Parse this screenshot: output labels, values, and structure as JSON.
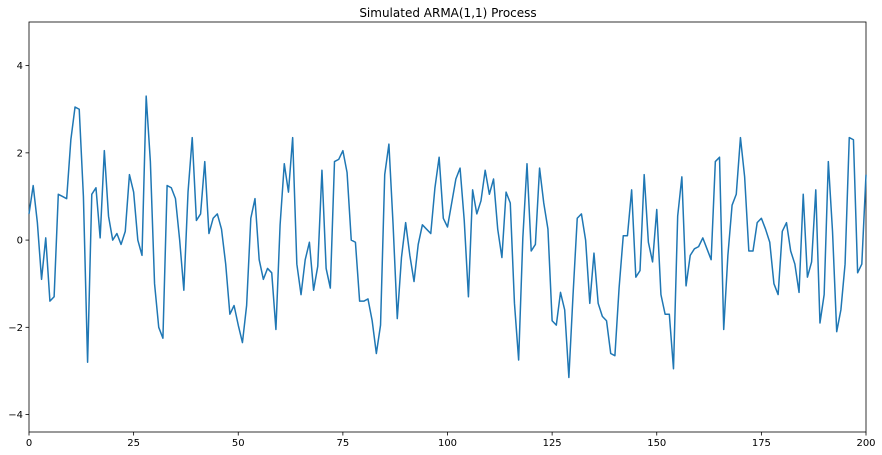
{
  "chart_data": {
    "type": "line",
    "title": "Simulated ARMA(1,1) Process",
    "xlabel": "",
    "ylabel": "",
    "xlim": [
      0,
      200
    ],
    "ylim": [
      -4.4,
      5.0
    ],
    "grid": false,
    "legend": "none",
    "line_color": "#1f77b4",
    "x_ticks": [
      0,
      25,
      50,
      75,
      100,
      125,
      150,
      175,
      200
    ],
    "y_ticks": [
      -4,
      -2,
      0,
      2,
      4
    ],
    "series": [
      {
        "x": [
          0,
          1,
          2,
          3,
          4,
          5,
          6,
          7,
          8,
          9,
          10,
          11,
          12,
          13,
          14,
          15,
          16,
          17,
          18,
          19,
          20,
          21,
          22,
          23,
          24,
          25,
          26,
          27,
          28,
          29,
          30,
          31,
          32,
          33,
          34,
          35,
          36,
          37,
          38,
          39,
          40,
          41,
          42,
          43,
          44,
          45,
          46,
          47,
          48,
          49,
          50,
          51,
          52,
          53,
          54,
          55,
          56,
          57,
          58,
          59,
          60,
          61,
          62,
          63,
          64,
          65,
          66,
          67,
          68,
          69,
          70,
          71,
          72,
          73,
          74,
          75,
          76,
          77,
          78,
          79,
          80,
          81,
          82,
          83,
          84,
          85,
          86,
          87,
          88,
          89,
          90,
          91,
          92,
          93,
          94,
          95,
          96,
          97,
          98,
          99,
          100,
          101,
          102,
          103,
          104,
          105,
          106,
          107,
          108,
          109,
          110,
          111,
          112,
          113,
          114,
          115,
          116,
          117,
          118,
          119,
          120,
          121,
          122,
          123,
          124,
          125,
          126,
          127,
          128,
          129,
          130,
          131,
          132,
          133,
          134,
          135,
          136,
          137,
          138,
          139,
          140,
          141,
          142,
          143,
          144,
          145,
          146,
          147,
          148,
          149,
          150,
          151,
          152,
          153,
          154,
          155,
          156,
          157,
          158,
          159,
          160,
          161,
          162,
          163,
          164,
          165,
          166,
          167,
          168,
          169,
          170,
          171,
          172,
          173,
          174,
          175,
          176,
          177,
          178,
          179,
          180,
          181,
          182,
          183,
          184,
          185,
          186,
          187,
          188,
          189,
          190,
          191,
          192,
          193,
          194,
          195,
          196,
          197,
          198,
          199,
          200
        ],
        "values": [
          0.6,
          1.25,
          0.4,
          -0.9,
          0.05,
          -1.4,
          -1.3,
          1.05,
          1.0,
          0.95,
          2.3,
          3.05,
          3.0,
          1.0,
          -2.8,
          1.05,
          1.2,
          0.05,
          2.05,
          0.55,
          0.0,
          0.15,
          -0.1,
          0.2,
          1.5,
          1.1,
          0.0,
          -0.35,
          3.3,
          1.8,
          -1.0,
          -2.0,
          -2.25,
          1.25,
          1.2,
          0.95,
          0.0,
          -1.15,
          1.1,
          2.35,
          0.45,
          0.6,
          1.8,
          0.15,
          0.5,
          0.6,
          0.25,
          -0.55,
          -1.7,
          -1.5,
          -1.95,
          -2.35,
          -1.5,
          0.5,
          0.95,
          -0.45,
          -0.9,
          -0.65,
          -0.75,
          -2.05,
          0.35,
          1.75,
          1.1,
          2.35,
          -0.55,
          -1.25,
          -0.45,
          -0.05,
          -1.15,
          -0.6,
          1.6,
          -0.65,
          -1.1,
          1.8,
          1.85,
          2.05,
          1.55,
          0.0,
          -0.05,
          -1.4,
          -1.4,
          -1.35,
          -1.85,
          -2.6,
          -1.95,
          1.5,
          2.2,
          0.35,
          -1.8,
          -0.4,
          0.4,
          -0.35,
          -0.95,
          -0.1,
          0.35,
          0.25,
          0.15,
          1.2,
          1.9,
          0.5,
          0.3,
          0.85,
          1.4,
          1.65,
          0.45,
          -1.3,
          1.15,
          0.6,
          0.9,
          1.6,
          1.05,
          1.4,
          0.25,
          -0.4,
          1.1,
          0.85,
          -1.45,
          -2.75,
          0.05,
          1.75,
          -0.25,
          -0.1,
          1.65,
          0.85,
          0.25,
          -1.85,
          -1.95,
          -1.2,
          -1.6,
          -3.15,
          -1.25,
          0.5,
          0.6,
          0.0,
          -1.45,
          -0.3,
          -1.45,
          -1.75,
          -1.85,
          -2.6,
          -2.65,
          -1.1,
          0.1,
          0.1,
          1.15,
          -0.85,
          -0.7,
          1.5,
          -0.05,
          -0.5,
          0.7,
          -1.25,
          -1.7,
          -1.7,
          -2.95,
          0.55,
          1.45,
          -1.05,
          -0.35,
          -0.2,
          -0.15,
          0.05,
          -0.2,
          -0.45,
          1.8,
          1.9,
          -2.05,
          -0.35,
          0.8,
          1.05,
          2.35,
          1.45,
          -0.25,
          -0.25,
          0.4,
          0.5,
          0.25,
          -0.05,
          -1.0,
          -1.25,
          0.2,
          0.4,
          -0.25,
          -0.55,
          -1.2,
          1.05,
          -0.85,
          -0.5,
          1.15,
          -1.9,
          -1.25,
          1.8,
          0.2,
          -2.1,
          -1.6,
          -0.55,
          2.35,
          2.3,
          -0.75,
          -0.55,
          1.5
        ]
      }
    ]
  }
}
